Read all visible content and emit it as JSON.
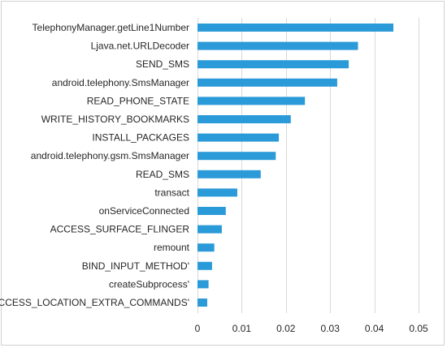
{
  "chart_data": {
    "type": "bar",
    "orientation": "horizontal",
    "title": "",
    "xlabel": "",
    "ylabel": "",
    "categories": [
      "TelephonyManager.getLine1Number",
      "Ljava.net.URLDecoder",
      "SEND_SMS",
      "android.telephony.SmsManager",
      "READ_PHONE_STATE",
      "WRITE_HISTORY_BOOKMARKS",
      "INSTALL_PACKAGES",
      "android.telephony.gsm.SmsManager",
      "READ_SMS",
      "transact",
      "onServiceConnected",
      "ACCESS_SURFACE_FLINGER",
      "remount",
      "BIND_INPUT_METHOD'",
      "createSubprocess'",
      "ACCESS_LOCATION_EXTRA_COMMANDS'"
    ],
    "values": [
      0.0443,
      0.0363,
      0.0342,
      0.0316,
      0.0243,
      0.0211,
      0.0184,
      0.0177,
      0.0143,
      0.009,
      0.0064,
      0.0055,
      0.0038,
      0.0033,
      0.0025,
      0.0022
    ],
    "xlim": [
      0,
      0.05
    ],
    "xticks": [
      "0",
      "0.01",
      "0.02",
      "0.03",
      "0.04",
      "0.05"
    ],
    "grid": "vertical",
    "legend": "none",
    "bar_color": "#2b9ad8"
  }
}
